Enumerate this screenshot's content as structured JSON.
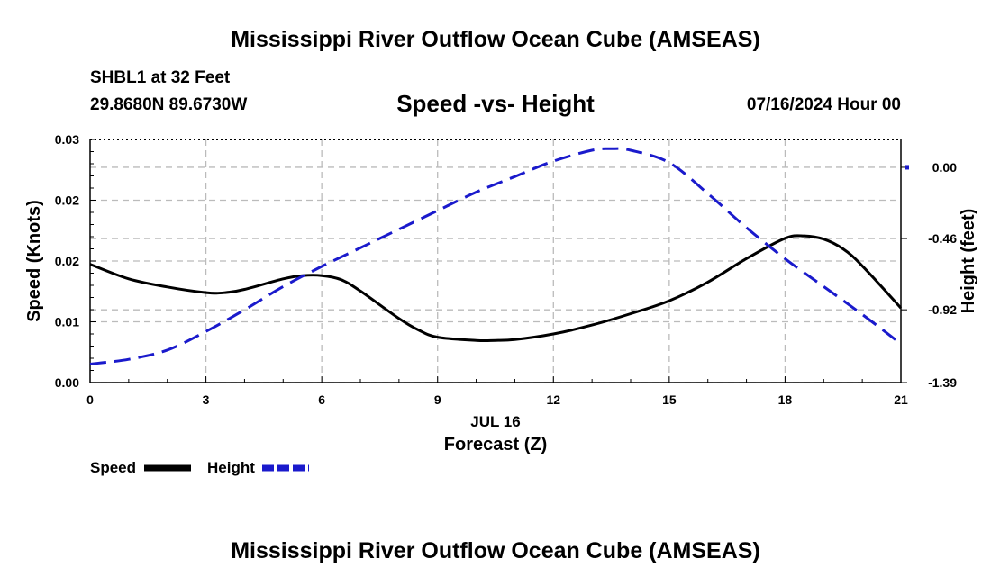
{
  "header": {
    "title": "Mississippi River Outflow Ocean Cube (AMSEAS)",
    "station": "SHBL1 at 32 Feet",
    "coords": "29.8680N  89.6730W",
    "subtitle": "Speed -vs- Height",
    "datetime": "07/16/2024 Hour 00"
  },
  "footer": {
    "title": "Mississippi River Outflow Ocean Cube (AMSEAS)"
  },
  "colors": {
    "speed": "#000000",
    "height": "#1a1acc",
    "grid": "#bbbbbb"
  },
  "chart_data": {
    "type": "line",
    "title": "Speed -vs- Height",
    "xlabel": "Forecast (Z)",
    "xlabel_date": "JUL 16",
    "ylabel_left": "Speed (Knots)",
    "ylabel_right": "Height (feet)",
    "xlim": [
      0,
      21
    ],
    "ylim_left": [
      0,
      0.03
    ],
    "ylim_right": [
      -1.39,
      0.18
    ],
    "x_ticks": [
      0,
      3,
      6,
      9,
      12,
      15,
      18,
      21
    ],
    "x_tick_labels": [
      "0",
      "3",
      "6",
      "9",
      "12",
      "15",
      "18",
      "21"
    ],
    "y_left_ticks": [
      0,
      0.0075,
      0.015,
      0.0225,
      0.03
    ],
    "y_left_tick_labels": [
      "0.00",
      "0.01",
      "0.02",
      "0.02",
      "0.03"
    ],
    "y_right_ticks": [
      0.0,
      -0.46,
      -0.92,
      -1.39
    ],
    "y_right_tick_labels": [
      "0.00",
      "-0.46",
      "-0.92",
      "-1.39"
    ],
    "legend": [
      {
        "name": "Speed",
        "style": "solid"
      },
      {
        "name": "Height",
        "style": "dashed"
      }
    ],
    "series": [
      {
        "name": "Speed",
        "axis": "left",
        "x": [
          0,
          1,
          2,
          3,
          3.5,
          4,
          5,
          5.5,
          6,
          6.5,
          7,
          8,
          8.5,
          9,
          10,
          10.5,
          11,
          12,
          13,
          14,
          15,
          16,
          17,
          18,
          18.5,
          19,
          19.5,
          20,
          21
        ],
        "values": [
          0.0146,
          0.0128,
          0.0118,
          0.0111,
          0.0111,
          0.0115,
          0.0128,
          0.0132,
          0.0132,
          0.0127,
          0.0113,
          0.0079,
          0.0065,
          0.0056,
          0.0052,
          0.0052,
          0.0053,
          0.006,
          0.0071,
          0.0085,
          0.0101,
          0.0124,
          0.0153,
          0.0178,
          0.0181,
          0.0177,
          0.0165,
          0.0144,
          0.0092
        ]
      },
      {
        "name": "Height",
        "axis": "right",
        "x": [
          0,
          1,
          2,
          3,
          4,
          5,
          6,
          7,
          8,
          9,
          10,
          11,
          12,
          13,
          13.5,
          14,
          15,
          16,
          17,
          18,
          19,
          20,
          21
        ],
        "values": [
          -1.27,
          -1.24,
          -1.18,
          -1.06,
          -0.92,
          -0.77,
          -0.64,
          -0.52,
          -0.4,
          -0.28,
          -0.16,
          -0.06,
          0.04,
          0.11,
          0.12,
          0.11,
          0.03,
          -0.17,
          -0.39,
          -0.59,
          -0.77,
          -0.95,
          -1.14
        ]
      }
    ]
  }
}
